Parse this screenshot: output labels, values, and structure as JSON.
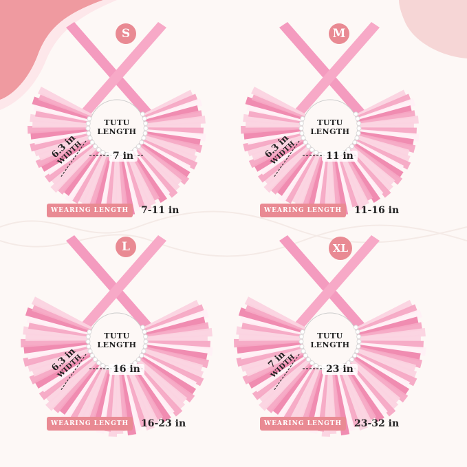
{
  "colors": {
    "accent": "#e98a93",
    "tulle_light": "#fbd3e0",
    "tulle_mid": "#f6a8c4",
    "tulle_dark": "#ef86ad",
    "ribbon": "#f49bbf",
    "background": "#fdf8f6"
  },
  "panels": [
    {
      "size": "S",
      "tutu_label": "TUTU LENGTH",
      "length": "7 in",
      "width_value": "6.3 in",
      "width_label": "WIDTH",
      "wearing_label": "WEARING LENGTH",
      "wearing_value": "7-11 in"
    },
    {
      "size": "M",
      "tutu_label": "TUTU LENGTH",
      "length": "11 in",
      "width_value": "6.3 in",
      "width_label": "WIDTH",
      "wearing_label": "WEARING LENGTH",
      "wearing_value": "11-16 in"
    },
    {
      "size": "L",
      "tutu_label": "TUTU LENGTH",
      "length": "16 in",
      "width_value": "6.3 in",
      "width_label": "WIDTH",
      "wearing_label": "WEARING LENGTH",
      "wearing_value": "16-23 in"
    },
    {
      "size": "XL",
      "tutu_label": "TUTU LENGTH",
      "length": "23 in",
      "width_value": "7 in",
      "width_label": "WIDTH",
      "wearing_label": "WEARING LENGTH",
      "wearing_value": "23-32 in"
    }
  ]
}
